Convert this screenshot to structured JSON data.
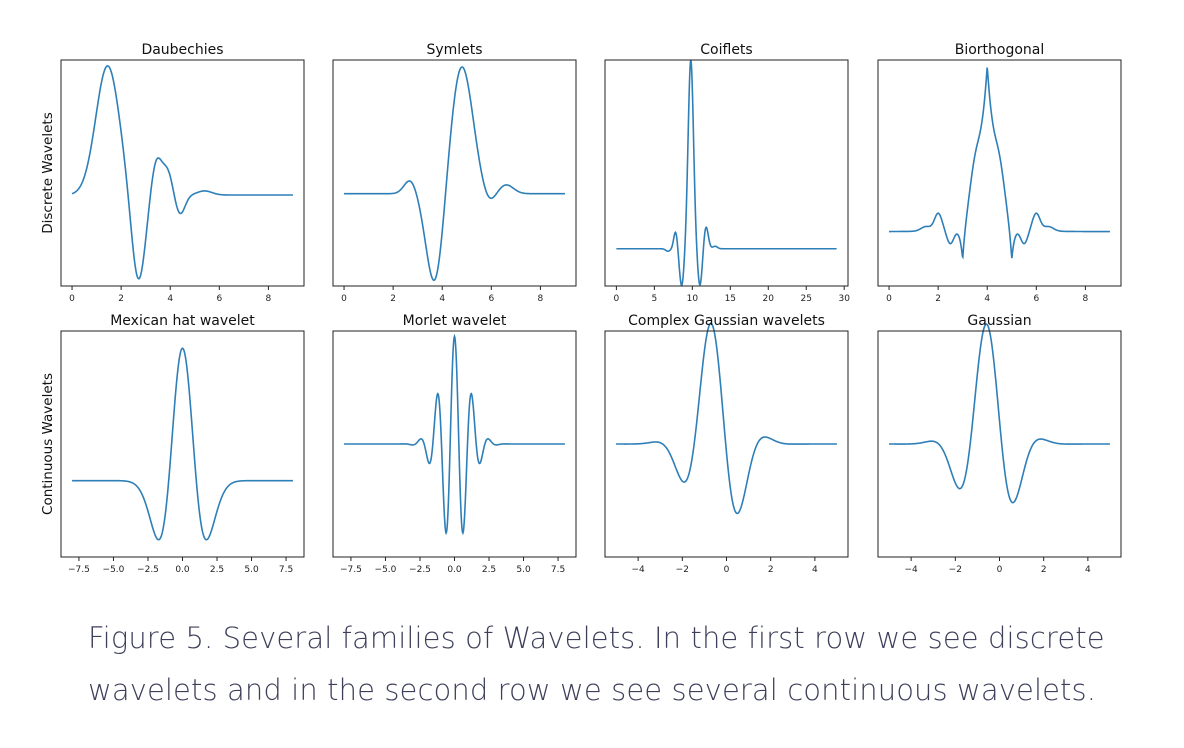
{
  "row_labels": [
    "Discrete Wavelets",
    "Continuous Wavelets"
  ],
  "caption": "Figure 5. Several families of Wavelets. In the first row we see discrete wavelets and in the second row we see several continuous wavelets.",
  "colors": {
    "line": "#2e7fb8",
    "frame": "#222222"
  },
  "chart_data": [
    {
      "type": "line",
      "title": "Daubechies",
      "row": 0,
      "col": 0,
      "xlim": [
        -0.45,
        9.45
      ],
      "xticks": [
        0,
        2,
        4,
        6,
        8
      ],
      "tick_labels": [
        "0",
        "2",
        "4",
        "6",
        "8"
      ],
      "curve": "daubechies",
      "x_range": [
        0,
        9
      ],
      "ylim": [
        -1.55,
        2.3
      ],
      "show_yticks": false
    },
    {
      "type": "line",
      "title": "Symlets",
      "row": 0,
      "col": 1,
      "xlim": [
        -0.45,
        9.45
      ],
      "xticks": [
        0,
        2,
        4,
        6,
        8
      ],
      "tick_labels": [
        "0",
        "2",
        "4",
        "6",
        "8"
      ],
      "curve": "symlets",
      "x_range": [
        0,
        9
      ],
      "ylim": [
        -1.45,
        2.1
      ],
      "show_yticks": false
    },
    {
      "type": "line",
      "title": "Coiflets",
      "row": 0,
      "col": 2,
      "xlim": [
        -1.5,
        30.5
      ],
      "xticks": [
        0,
        5,
        10,
        15,
        20,
        25,
        30
      ],
      "tick_labels": [
        "0",
        "5",
        "10",
        "15",
        "20",
        "25",
        "30"
      ],
      "curve": "coiflets",
      "x_range": [
        0,
        29
      ],
      "ylim": [
        -0.75,
        3.8
      ],
      "show_yticks": false
    },
    {
      "type": "line",
      "title": "Biorthogonal",
      "row": 0,
      "col": 3,
      "xlim": [
        -0.45,
        9.45
      ],
      "xticks": [
        0,
        2,
        4,
        6,
        8
      ],
      "tick_labels": [
        "0",
        "2",
        "4",
        "6",
        "8"
      ],
      "curve": "biorthogonal",
      "x_range": [
        0,
        9
      ],
      "ylim": [
        -1.0,
        3.15
      ],
      "show_yticks": false
    },
    {
      "type": "line",
      "title": "Mexican hat wavelet",
      "row": 1,
      "col": 0,
      "xlim": [
        -8.8,
        8.8
      ],
      "xticks": [
        -7.5,
        -5,
        -2.5,
        0,
        2.5,
        5,
        7.5
      ],
      "tick_labels": [
        "−7.5",
        "−5.0",
        "−2.5",
        "0.0",
        "2.5",
        "5.0",
        "7.5"
      ],
      "curve": "mexican_hat",
      "x_range": [
        -8,
        8
      ],
      "ylim": [
        -0.5,
        0.98
      ],
      "show_yticks": false
    },
    {
      "type": "line",
      "title": "Morlet wavelet",
      "row": 1,
      "col": 1,
      "xlim": [
        -8.8,
        8.8
      ],
      "xticks": [
        -7.5,
        -5,
        -2.5,
        0,
        2.5,
        5,
        7.5
      ],
      "tick_labels": [
        "−7.5",
        "−5.0",
        "−2.5",
        "0.0",
        "2.5",
        "5.0",
        "7.5"
      ],
      "curve": "morlet",
      "x_range": [
        -8,
        8
      ],
      "ylim": [
        -1.05,
        1.05
      ],
      "show_yticks": false
    },
    {
      "type": "line",
      "title": "Complex Gaussian wavelets",
      "row": 1,
      "col": 2,
      "xlim": [
        -5.5,
        5.5
      ],
      "xticks": [
        -4,
        -2,
        0,
        2,
        4
      ],
      "tick_labels": [
        "−4",
        "−2",
        "0",
        "2",
        "4"
      ],
      "curve": "complex_gaussian",
      "x_range": [
        -5,
        5
      ],
      "ylim": [
        -1.05,
        1.05
      ],
      "show_yticks": false
    },
    {
      "type": "line",
      "title": "Gaussian",
      "row": 1,
      "col": 3,
      "xlim": [
        -5.5,
        5.5
      ],
      "xticks": [
        -4,
        -2,
        0,
        2,
        4
      ],
      "tick_labels": [
        "−4",
        "−2",
        "0",
        "2",
        "4"
      ],
      "curve": "gaussian_deriv",
      "x_range": [
        -5,
        5
      ],
      "ylim": [
        -1.05,
        1.05
      ],
      "show_yticks": false
    }
  ]
}
